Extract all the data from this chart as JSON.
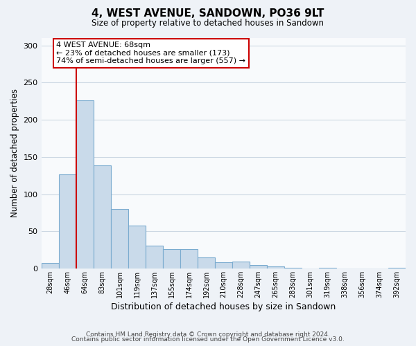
{
  "title": "4, WEST AVENUE, SANDOWN, PO36 9LT",
  "subtitle": "Size of property relative to detached houses in Sandown",
  "xlabel": "Distribution of detached houses by size in Sandown",
  "ylabel": "Number of detached properties",
  "bar_labels": [
    "28sqm",
    "46sqm",
    "64sqm",
    "83sqm",
    "101sqm",
    "119sqm",
    "137sqm",
    "155sqm",
    "174sqm",
    "192sqm",
    "210sqm",
    "228sqm",
    "247sqm",
    "265sqm",
    "283sqm",
    "301sqm",
    "319sqm",
    "338sqm",
    "356sqm",
    "374sqm",
    "392sqm"
  ],
  "bar_values": [
    7,
    127,
    226,
    139,
    80,
    58,
    31,
    26,
    26,
    15,
    8,
    9,
    5,
    3,
    1,
    0,
    1,
    0,
    0,
    0,
    1
  ],
  "bar_color": "#c9daea",
  "bar_edge_color": "#7aabcf",
  "ylim": [
    0,
    310
  ],
  "yticks": [
    0,
    50,
    100,
    150,
    200,
    250,
    300
  ],
  "property_line_color": "#cc0000",
  "annotation_text_line1": "4 WEST AVENUE: 68sqm",
  "annotation_text_line2": "← 23% of detached houses are smaller (173)",
  "annotation_text_line3": "74% of semi-detached houses are larger (557) →",
  "annotation_box_color": "#cc0000",
  "footer_line1": "Contains HM Land Registry data © Crown copyright and database right 2024.",
  "footer_line2": "Contains public sector information licensed under the Open Government Licence v3.0.",
  "background_color": "#eef2f7",
  "plot_bg_color": "#f8fafc",
  "grid_color": "#cdd8e3"
}
